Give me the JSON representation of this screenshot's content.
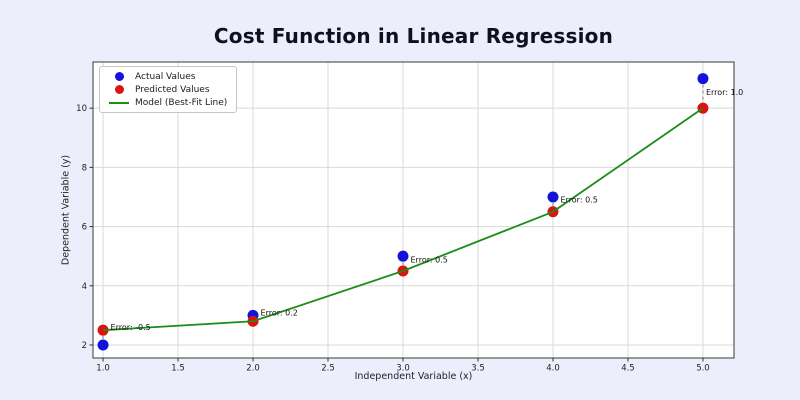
{
  "page": {
    "background_color": "#ECEEFB"
  },
  "chart_data": {
    "type": "scatter",
    "title": "Cost Function in Linear Regression",
    "xlabel": "Independent Variable (x)",
    "ylabel": "Dependent Variable (y)",
    "x": [
      1,
      2,
      3,
      4,
      5
    ],
    "series": [
      {
        "name": "Actual Values",
        "type": "scatter",
        "color": "#1313dc",
        "values": [
          2,
          3,
          5,
          7,
          11
        ]
      },
      {
        "name": "Predicted Values",
        "type": "scatter",
        "color": "#dc1310",
        "values": [
          2.5,
          2.8,
          4.5,
          6.5,
          10
        ]
      },
      {
        "name": "Model (Best-Fit Line)",
        "type": "line",
        "color": "#1a8c1a",
        "values": [
          2.5,
          2.8,
          4.5,
          6.5,
          10
        ]
      }
    ],
    "errors": [
      -0.5,
      0.2,
      0.5,
      0.5,
      1.0
    ],
    "annotations": [
      {
        "x": 1.05,
        "y": 2.5,
        "label": "Error: -0.5"
      },
      {
        "x": 2.05,
        "y": 3.0,
        "label": "Error: 0.2"
      },
      {
        "x": 3.05,
        "y": 4.78,
        "label": "Error: 0.5"
      },
      {
        "x": 4.05,
        "y": 6.82,
        "label": "Error: 0.5"
      },
      {
        "x": 5.02,
        "y": 10.45,
        "label": "Error: 1.0"
      }
    ],
    "xticks": [
      "1.0",
      "1.5",
      "2.0",
      "2.5",
      "3.0",
      "3.5",
      "4.0",
      "4.5",
      "5.0"
    ],
    "yticks": [
      "2",
      "4",
      "6",
      "8",
      "10"
    ],
    "xlim": [
      0.933,
      5.207
    ],
    "ylim": [
      1.56,
      11.56
    ],
    "grid": true,
    "legend_position": "upper left",
    "colors": {
      "plot_background": "#ffffff",
      "grid": "#d9d9d9",
      "axis_border": "#3a3a3a",
      "tick": "#333333",
      "tick_text": "#1f1f1f",
      "error_line": "#8f8f8f",
      "annotation_text": "#111111"
    }
  }
}
